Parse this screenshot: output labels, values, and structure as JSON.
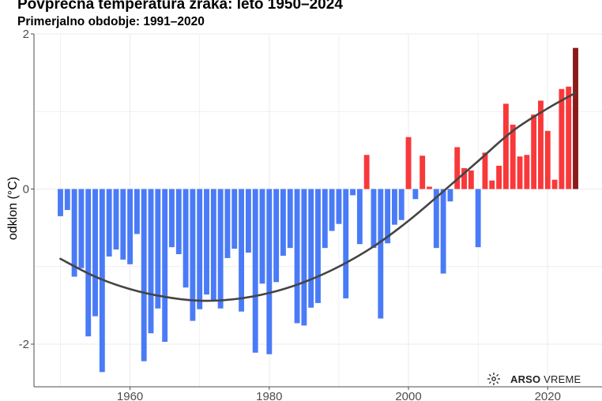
{
  "chart_data": {
    "type": "bar",
    "title": "Povprečna temperatura zraka: leto 1950–2024",
    "subtitle": "Primerjalno obdobje: 1991–2020",
    "xlabel": "",
    "ylabel": "odklon (°C)",
    "xlim": [
      1946.2,
      2027.8
    ],
    "ylim": [
      -2.55,
      2.0
    ],
    "x_ticks": [
      "1960",
      "1980",
      "2000",
      "2020"
    ],
    "y_ticks": [
      "-2",
      "0",
      "2"
    ],
    "colors": {
      "negative": "#4a7bf7",
      "positive": "#f9383a",
      "latest": "#8b1a1a",
      "trend": "#444444",
      "grid": "#ebebeb",
      "axis": "#4d4d4d"
    },
    "years": [
      1950,
      1951,
      1952,
      1953,
      1954,
      1955,
      1956,
      1957,
      1958,
      1959,
      1960,
      1961,
      1962,
      1963,
      1964,
      1965,
      1966,
      1967,
      1968,
      1969,
      1970,
      1971,
      1972,
      1973,
      1974,
      1975,
      1976,
      1977,
      1978,
      1979,
      1980,
      1981,
      1982,
      1983,
      1984,
      1985,
      1986,
      1987,
      1988,
      1989,
      1990,
      1991,
      1992,
      1993,
      1994,
      1995,
      1996,
      1997,
      1998,
      1999,
      2000,
      2001,
      2002,
      2003,
      2004,
      2005,
      2006,
      2007,
      2008,
      2009,
      2010,
      2011,
      2012,
      2013,
      2014,
      2015,
      2016,
      2017,
      2018,
      2019,
      2020,
      2021,
      2022,
      2023,
      2024
    ],
    "values": [
      -0.35,
      -0.27,
      -1.13,
      -1.02,
      -1.9,
      -1.64,
      -2.36,
      -0.87,
      -0.78,
      -0.91,
      -0.97,
      -0.58,
      -2.22,
      -1.86,
      -1.54,
      -1.97,
      -0.75,
      -0.84,
      -1.27,
      -1.7,
      -1.55,
      -1.36,
      -1.44,
      -1.54,
      -0.89,
      -0.77,
      -1.58,
      -0.82,
      -2.11,
      -1.22,
      -2.13,
      -1.2,
      -0.86,
      -0.76,
      -1.73,
      -1.76,
      -1.53,
      -1.47,
      -0.76,
      -0.54,
      -0.45,
      -1.41,
      -0.08,
      -0.71,
      0.44,
      -0.76,
      -1.67,
      -0.7,
      -0.46,
      -0.4,
      0.67,
      -0.13,
      0.43,
      0.03,
      -0.76,
      -1.09,
      -0.16,
      0.54,
      0.27,
      0.24,
      -0.75,
      0.47,
      0.11,
      0.3,
      1.1,
      0.83,
      0.42,
      0.44,
      0.96,
      1.14,
      0.75,
      0.12,
      1.29,
      1.32,
      1.82
    ],
    "trend": {
      "name": "trend",
      "x": [
        1950,
        1955,
        1960,
        1965,
        1970,
        1975,
        1980,
        1985,
        1990,
        1995,
        2000,
        2005,
        2010,
        2015,
        2020,
        2024
      ],
      "y": [
        -0.9,
        -1.13,
        -1.29,
        -1.39,
        -1.44,
        -1.42,
        -1.34,
        -1.2,
        -1.0,
        -0.74,
        -0.41,
        -0.03,
        0.36,
        0.75,
        1.04,
        1.24
      ]
    }
  },
  "logo": {
    "brand": "ARSO",
    "product": "VREME",
    "icon": "weather-icon"
  }
}
